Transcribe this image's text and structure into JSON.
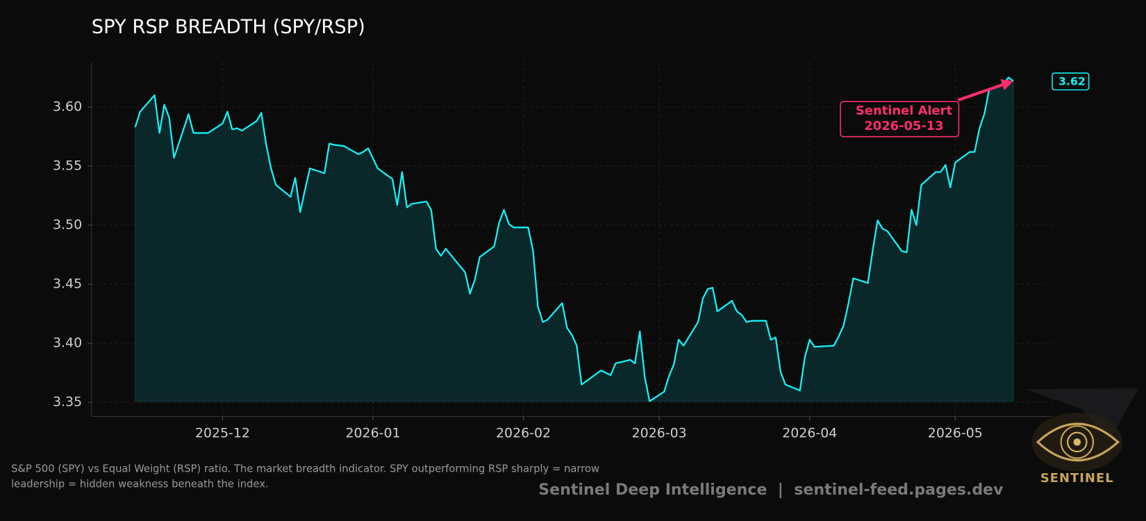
{
  "chart_data": {
    "type": "line",
    "title": "SPY RSP BREADTH (SPY/RSP)",
    "x": [
      "2025-11-13",
      "2025-11-14",
      "2025-11-17",
      "2025-11-18",
      "2025-11-19",
      "2025-11-20",
      "2025-11-21",
      "2025-11-24",
      "2025-11-25",
      "2025-11-26",
      "2025-11-28",
      "2025-12-01",
      "2025-12-02",
      "2025-12-03",
      "2025-12-04",
      "2025-12-05",
      "2025-12-08",
      "2025-12-09",
      "2025-12-10",
      "2025-12-11",
      "2025-12-12",
      "2025-12-15",
      "2025-12-16",
      "2025-12-17",
      "2025-12-18",
      "2025-12-19",
      "2025-12-22",
      "2025-12-23",
      "2025-12-24",
      "2025-12-26",
      "2025-12-29",
      "2025-12-30",
      "2025-12-31",
      "2026-01-02",
      "2026-01-05",
      "2026-01-06",
      "2026-01-07",
      "2026-01-08",
      "2026-01-09",
      "2026-01-12",
      "2026-01-13",
      "2026-01-14",
      "2026-01-15",
      "2026-01-16",
      "2026-01-20",
      "2026-01-21",
      "2026-01-22",
      "2026-01-23",
      "2026-01-26",
      "2026-01-27",
      "2026-01-28",
      "2026-01-29",
      "2026-01-30",
      "2026-02-02",
      "2026-02-03",
      "2026-02-04",
      "2026-02-05",
      "2026-02-06",
      "2026-02-09",
      "2026-02-10",
      "2026-02-11",
      "2026-02-12",
      "2026-02-13",
      "2026-02-17",
      "2026-02-18",
      "2026-02-19",
      "2026-02-20",
      "2026-02-23",
      "2026-02-24",
      "2026-02-25",
      "2026-02-26",
      "2026-02-27",
      "2026-03-02",
      "2026-03-03",
      "2026-03-04",
      "2026-03-05",
      "2026-03-06",
      "2026-03-09",
      "2026-03-10",
      "2026-03-11",
      "2026-03-12",
      "2026-03-13",
      "2026-03-16",
      "2026-03-17",
      "2026-03-18",
      "2026-03-19",
      "2026-03-20",
      "2026-03-23",
      "2026-03-24",
      "2026-03-25",
      "2026-03-26",
      "2026-03-27",
      "2026-03-30",
      "2026-03-31",
      "2026-04-01",
      "2026-04-02",
      "2026-04-06",
      "2026-04-07",
      "2026-04-08",
      "2026-04-09",
      "2026-04-10",
      "2026-04-13",
      "2026-04-14",
      "2026-04-15",
      "2026-04-16",
      "2026-04-17",
      "2026-04-20",
      "2026-04-21",
      "2026-04-22",
      "2026-04-23",
      "2026-04-24",
      "2026-04-27",
      "2026-04-28",
      "2026-04-29",
      "2026-04-30",
      "2026-05-01",
      "2026-05-04",
      "2026-05-05",
      "2026-05-06",
      "2026-05-07",
      "2026-05-08",
      "2026-05-11",
      "2026-05-12",
      "2026-05-13"
    ],
    "values": [
      3.583,
      3.596,
      3.61,
      3.578,
      3.602,
      3.591,
      3.557,
      3.594,
      3.578,
      3.578,
      3.578,
      3.586,
      3.596,
      3.581,
      3.582,
      3.58,
      3.588,
      3.595,
      3.568,
      3.548,
      3.534,
      3.524,
      3.54,
      3.511,
      3.53,
      3.548,
      3.544,
      3.569,
      3.568,
      3.567,
      3.56,
      3.562,
      3.565,
      3.548,
      3.539,
      3.517,
      3.545,
      3.515,
      3.518,
      3.52,
      3.513,
      3.48,
      3.474,
      3.48,
      3.46,
      3.442,
      3.454,
      3.473,
      3.482,
      3.502,
      3.513,
      3.501,
      3.498,
      3.498,
      3.478,
      3.431,
      3.418,
      3.42,
      3.434,
      3.413,
      3.407,
      3.398,
      3.365,
      3.377,
      3.375,
      3.373,
      3.383,
      3.386,
      3.383,
      3.41,
      3.372,
      3.351,
      3.359,
      3.372,
      3.382,
      3.403,
      3.398,
      3.418,
      3.438,
      3.446,
      3.447,
      3.427,
      3.436,
      3.427,
      3.424,
      3.418,
      3.419,
      3.419,
      3.403,
      3.405,
      3.376,
      3.365,
      3.36,
      3.388,
      3.403,
      3.397,
      3.398,
      3.406,
      3.415,
      3.434,
      3.455,
      3.451,
      3.479,
      3.504,
      3.497,
      3.495,
      3.478,
      3.477,
      3.513,
      3.5,
      3.534,
      3.545,
      3.545,
      3.551,
      3.532,
      3.553,
      3.562,
      3.562,
      3.582,
      3.594,
      3.615,
      3.62,
      3.625,
      3.622
    ],
    "color": "#14f0f5",
    "fill_color": "#0a2729",
    "xlim": [
      "2025-11-04",
      "2026-05-21"
    ],
    "xticks": [
      "2025-12",
      "2026-01",
      "2026-02",
      "2026-03",
      "2026-04",
      "2026-05"
    ],
    "ylim": [
      3.338,
      3.638
    ],
    "yticks": [
      3.35,
      {
        "value": 3.4,
        "label": "3.40"
      },
      3.45,
      {
        "value": 3.5,
        "label": "3.50"
      },
      3.55,
      {
        "value": 3.6,
        "label": "3.60"
      }
    ],
    "grid": true,
    "last_label": "3.62",
    "annotation": {
      "title": "Sentinel Alert",
      "date": "2026-05-13",
      "color": "#ff2e6a"
    },
    "caption": "S&P 500 (SPY) vs Equal Weight (RSP) ratio. The market breadth indicator. SPY outperforming RSP sharply = narrow leadership = hidden weakness beneath the index.",
    "credit": "Sentinel Deep Intelligence  |  sentinel-feed.pages.dev",
    "logo_text": "SENTINEL"
  }
}
